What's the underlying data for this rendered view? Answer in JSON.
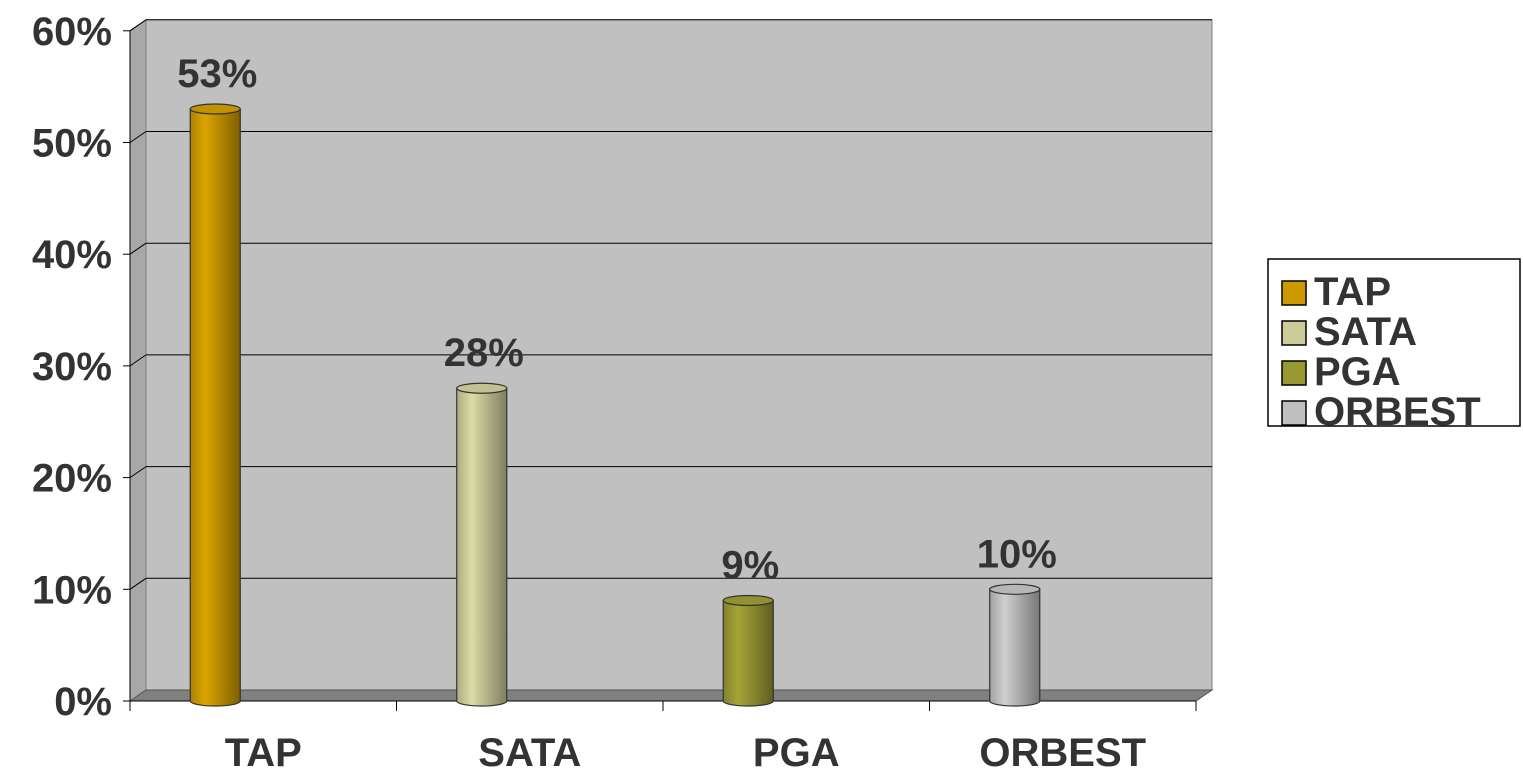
{
  "chart_data": {
    "type": "bar",
    "categories": [
      "TAP",
      "SATA",
      "PGA",
      "ORBEST"
    ],
    "values": [
      53,
      28,
      9,
      10
    ],
    "data_labels": [
      "53%",
      "28%",
      "9%",
      "10%"
    ],
    "colors": [
      "#cc9900",
      "#cccc99",
      "#999933",
      "#c0c0c0"
    ],
    "yticks": [
      "0%",
      "10%",
      "20%",
      "30%",
      "40%",
      "50%",
      "60%"
    ],
    "ylim": [
      0,
      60
    ],
    "grid": true,
    "style": "3d-cylinder",
    "plot_background": "#c0c0c0",
    "legend": {
      "position": "right",
      "entries": [
        "TAP",
        "SATA",
        "PGA",
        "ORBEST"
      ]
    }
  }
}
